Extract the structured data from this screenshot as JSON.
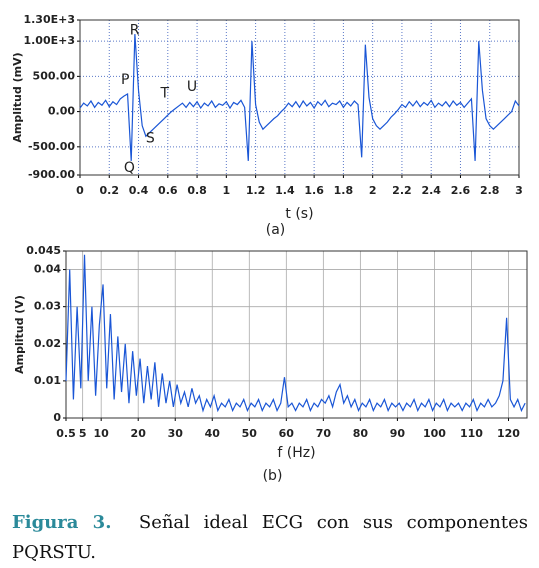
{
  "chart_data": [
    {
      "type": "line",
      "subtitle": "(a)",
      "xlabel": "t (s)",
      "ylabel": "Amplitud (mV)",
      "color": "#1a56d6",
      "grid": true,
      "xlim": [
        0,
        3
      ],
      "ylim": [
        -900,
        1300
      ],
      "xticks": [
        0,
        0.2,
        0.4,
        0.6,
        0.8,
        1,
        1.2,
        1.4,
        1.6,
        1.8,
        2,
        2.2,
        2.4,
        2.6,
        2.8,
        3
      ],
      "yticks": [
        {
          "value": -900,
          "label": "-900.00"
        },
        {
          "value": -500,
          "label": "-500.00"
        },
        {
          "value": 0,
          "label": "0.00"
        },
        {
          "value": 500,
          "label": "500.00"
        },
        {
          "value": 1000,
          "label": "1.00E+3"
        },
        {
          "value": 1300,
          "label": "1.30E+3"
        }
      ],
      "annotations": [
        {
          "text": "P",
          "x": 0.28,
          "y": 450
        },
        {
          "text": "Q",
          "x": 0.3,
          "y": -800
        },
        {
          "text": "R",
          "x": 0.34,
          "y": 1150
        },
        {
          "text": "S",
          "x": 0.45,
          "y": -380
        },
        {
          "text": "T",
          "x": 0.55,
          "y": 260
        },
        {
          "text": "U",
          "x": 0.73,
          "y": 350
        }
      ],
      "x": [
        0,
        0.025,
        0.05,
        0.075,
        0.1,
        0.125,
        0.15,
        0.175,
        0.2,
        0.225,
        0.25,
        0.275,
        0.3,
        0.325,
        0.35,
        0.375,
        0.4,
        0.425,
        0.45,
        0.475,
        0.5,
        0.525,
        0.55,
        0.575,
        0.6,
        0.625,
        0.65,
        0.675,
        0.7,
        0.725,
        0.75,
        0.775,
        0.8,
        0.825,
        0.85,
        0.875,
        0.9,
        0.925,
        0.95,
        0.975,
        1,
        1.025,
        1.05,
        1.075,
        1.1,
        1.125,
        1.15,
        1.175,
        1.2,
        1.225,
        1.25,
        1.275,
        1.3,
        1.325,
        1.35,
        1.375,
        1.4,
        1.425,
        1.45,
        1.475,
        1.5,
        1.525,
        1.55,
        1.575,
        1.6,
        1.625,
        1.65,
        1.675,
        1.7,
        1.725,
        1.75,
        1.775,
        1.8,
        1.825,
        1.85,
        1.875,
        1.9,
        1.925,
        1.95,
        1.975,
        2,
        2.025,
        2.05,
        2.075,
        2.1,
        2.125,
        2.15,
        2.175,
        2.2,
        2.225,
        2.25,
        2.275,
        2.3,
        2.325,
        2.35,
        2.375,
        2.4,
        2.425,
        2.45,
        2.475,
        2.5,
        2.525,
        2.55,
        2.575,
        2.6,
        2.625,
        2.65,
        2.675,
        2.7,
        2.725,
        2.75,
        2.775,
        2.8,
        2.825,
        2.85,
        2.875,
        2.9,
        2.925,
        2.95,
        2.975,
        3
      ],
      "values": [
        50,
        120,
        80,
        150,
        60,
        130,
        90,
        160,
        70,
        140,
        100,
        180,
        220,
        250,
        -700,
        1100,
        300,
        -200,
        -350,
        -300,
        -250,
        -200,
        -150,
        -100,
        -50,
        0,
        40,
        80,
        120,
        60,
        130,
        70,
        140,
        50,
        120,
        80,
        150,
        60,
        110,
        90,
        140,
        50,
        130,
        100,
        160,
        60,
        -700,
        1000,
        100,
        -150,
        -250,
        -200,
        -150,
        -100,
        -60,
        0,
        50,
        120,
        70,
        140,
        60,
        150,
        80,
        130,
        50,
        140,
        90,
        160,
        70,
        120,
        100,
        150,
        60,
        130,
        80,
        150,
        100,
        -650,
        950,
        200,
        -100,
        -200,
        -250,
        -200,
        -150,
        -80,
        -30,
        30,
        100,
        60,
        140,
        80,
        150,
        70,
        130,
        90,
        160,
        60,
        120,
        80,
        140,
        70,
        150,
        90,
        130,
        60,
        120,
        180,
        -700,
        1000,
        300,
        -100,
        -200,
        -250,
        -200,
        -150,
        -100,
        -50,
        0,
        150,
        80
      ]
    },
    {
      "type": "line",
      "subtitle": "(b)",
      "xlabel": "f (Hz)",
      "ylabel": "Amplitud (V)",
      "color": "#1a56d6",
      "grid": true,
      "xlim": [
        0.5,
        125
      ],
      "ylim": [
        0,
        0.045
      ],
      "xticks": [
        0.5,
        5,
        10,
        20,
        30,
        40,
        50,
        60,
        70,
        80,
        90,
        100,
        110,
        120
      ],
      "yticks": [
        0,
        0.01,
        0.02,
        0.03,
        0.04,
        0.045
      ],
      "x": [
        0.5,
        1.5,
        2.5,
        3.5,
        4.5,
        5.5,
        6.5,
        7.5,
        8.5,
        9.5,
        10.5,
        11.5,
        12.5,
        13.5,
        14.5,
        15.5,
        16.5,
        17.5,
        18.5,
        19.5,
        20.5,
        21.5,
        22.5,
        23.5,
        24.5,
        25.5,
        26.5,
        27.5,
        28.5,
        29.5,
        30.5,
        31.5,
        32.5,
        33.5,
        34.5,
        35.5,
        36.5,
        37.5,
        38.5,
        39.5,
        40.5,
        41.5,
        42.5,
        43.5,
        44.5,
        45.5,
        46.5,
        47.5,
        48.5,
        49.5,
        50.5,
        51.5,
        52.5,
        53.5,
        54.5,
        55.5,
        56.5,
        57.5,
        58.5,
        59.5,
        60.5,
        61.5,
        62.5,
        63.5,
        64.5,
        65.5,
        66.5,
        67.5,
        68.5,
        69.5,
        70.5,
        71.5,
        72.5,
        73.5,
        74.5,
        75.5,
        76.5,
        77.5,
        78.5,
        79.5,
        80.5,
        81.5,
        82.5,
        83.5,
        84.5,
        85.5,
        86.5,
        87.5,
        88.5,
        89.5,
        90.5,
        91.5,
        92.5,
        93.5,
        94.5,
        95.5,
        96.5,
        97.5,
        98.5,
        99.5,
        100.5,
        101.5,
        102.5,
        103.5,
        104.5,
        105.5,
        106.5,
        107.5,
        108.5,
        109.5,
        110.5,
        111.5,
        112.5,
        113.5,
        114.5,
        115.5,
        116.5,
        117.5,
        118.5,
        119.5,
        120.5,
        121.5,
        122.5,
        123.5,
        124.5
      ],
      "values": [
        0.01,
        0.04,
        0.005,
        0.03,
        0.008,
        0.044,
        0.01,
        0.03,
        0.006,
        0.025,
        0.036,
        0.008,
        0.028,
        0.005,
        0.022,
        0.007,
        0.02,
        0.004,
        0.018,
        0.006,
        0.016,
        0.004,
        0.014,
        0.005,
        0.015,
        0.003,
        0.012,
        0.004,
        0.01,
        0.003,
        0.009,
        0.004,
        0.007,
        0.003,
        0.008,
        0.004,
        0.006,
        0.002,
        0.005,
        0.003,
        0.006,
        0.002,
        0.004,
        0.003,
        0.005,
        0.002,
        0.004,
        0.003,
        0.005,
        0.002,
        0.004,
        0.003,
        0.005,
        0.002,
        0.004,
        0.003,
        0.005,
        0.002,
        0.004,
        0.011,
        0.003,
        0.004,
        0.002,
        0.004,
        0.003,
        0.005,
        0.002,
        0.004,
        0.003,
        0.005,
        0.004,
        0.006,
        0.003,
        0.007,
        0.009,
        0.004,
        0.006,
        0.003,
        0.005,
        0.002,
        0.004,
        0.003,
        0.005,
        0.002,
        0.004,
        0.003,
        0.005,
        0.002,
        0.004,
        0.003,
        0.004,
        0.002,
        0.004,
        0.003,
        0.005,
        0.002,
        0.004,
        0.003,
        0.005,
        0.002,
        0.004,
        0.003,
        0.005,
        0.002,
        0.004,
        0.003,
        0.004,
        0.002,
        0.004,
        0.003,
        0.005,
        0.002,
        0.004,
        0.003,
        0.005,
        0.003,
        0.004,
        0.006,
        0.01,
        0.027,
        0.005,
        0.003,
        0.005,
        0.002,
        0.004
      ]
    }
  ],
  "caption": {
    "label": "Figura 3.",
    "text": "Señal ideal ECG con sus componentes PQRSTU."
  }
}
